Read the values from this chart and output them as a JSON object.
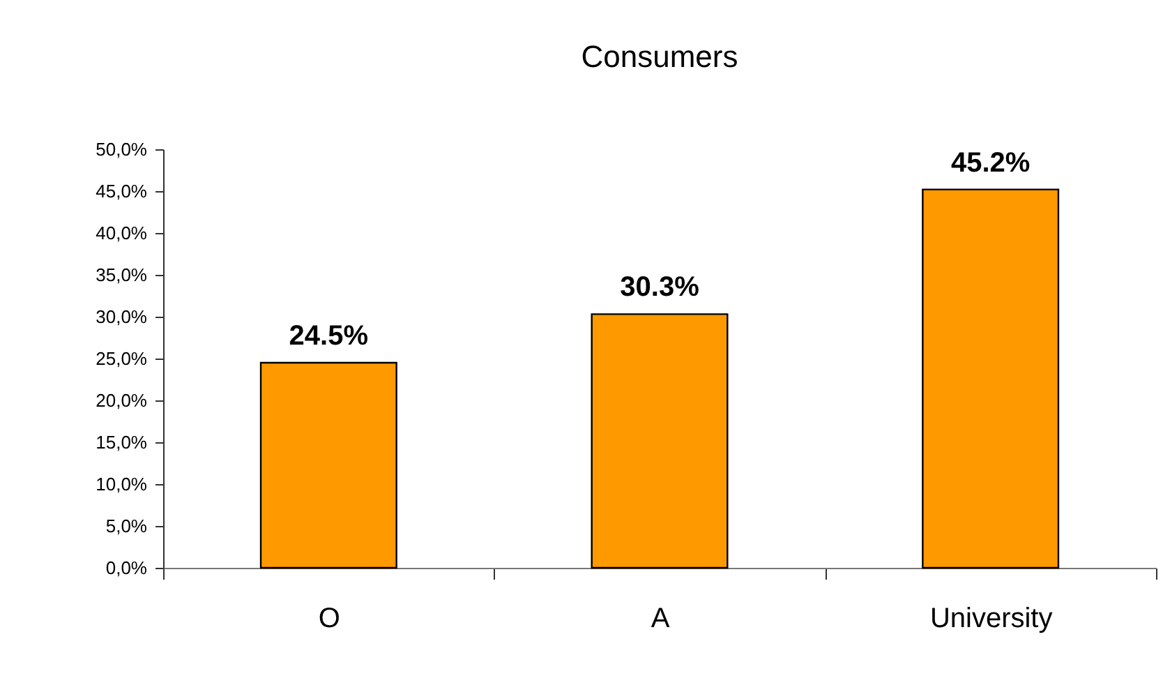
{
  "chart_data": {
    "type": "bar",
    "title": "Consumers",
    "categories": [
      "O",
      "A",
      "University"
    ],
    "values": [
      24.5,
      30.3,
      45.2
    ],
    "color": "#ff9900",
    "value_labels": [
      "24.5%",
      "30.3%",
      "45.2%"
    ],
    "ylim": [
      0,
      50
    ],
    "yticks": [
      {
        "value": 0,
        "label": "0,0%"
      },
      {
        "value": 5,
        "label": "5,0%"
      },
      {
        "value": 10,
        "label": "10,0%"
      },
      {
        "value": 15,
        "label": "15,0%"
      },
      {
        "value": 20,
        "label": "20,0%"
      },
      {
        "value": 25,
        "label": "25,0%"
      },
      {
        "value": 30,
        "label": "30,0%"
      },
      {
        "value": 35,
        "label": "35,0%"
      },
      {
        "value": 40,
        "label": "40,0%"
      },
      {
        "value": 45,
        "label": "45,0%"
      },
      {
        "value": 50,
        "label": "50,0%"
      }
    ],
    "grid": false
  }
}
